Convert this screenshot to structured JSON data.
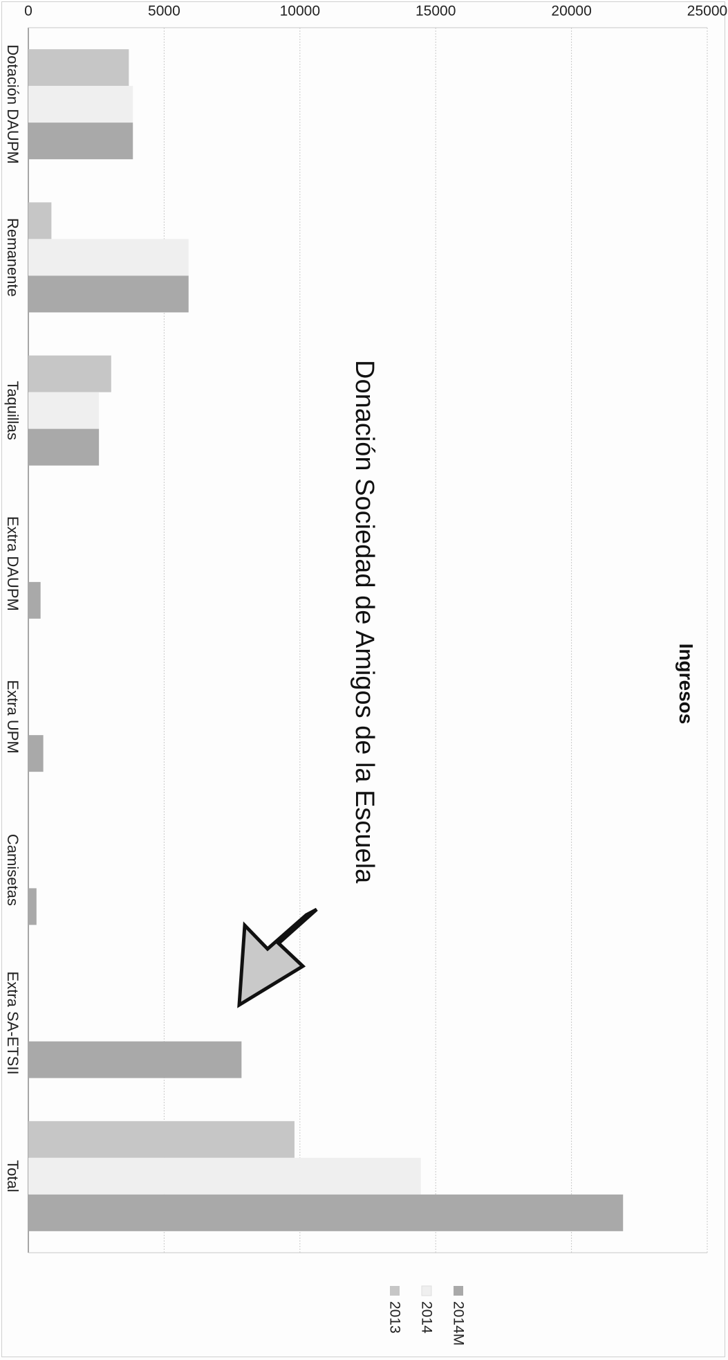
{
  "chart_data": {
    "type": "bar",
    "orientation": "vertical",
    "rotation": "90deg clockwise",
    "title": "Ingresos",
    "xlabel": "",
    "ylabel": "",
    "ylim": [
      0,
      25000
    ],
    "yticks": [
      0,
      5000,
      10000,
      15000,
      20000,
      25000
    ],
    "grid": true,
    "legend_position": "right",
    "categories": [
      "Dotación DAUPM",
      "Remanente",
      "Taquillas",
      "Extra DAUPM",
      "Extra UPM",
      "Camisetas",
      "Extra SA-ETSII",
      "Total"
    ],
    "series": [
      {
        "name": "2013",
        "color": "#c6c6c6",
        "values": [
          3700,
          850,
          3050,
          0,
          0,
          0,
          0,
          9800
        ]
      },
      {
        "name": "2014",
        "color": "#efefef",
        "values": [
          3850,
          5900,
          2600,
          0,
          0,
          0,
          0,
          14450
        ]
      },
      {
        "name": "2014M",
        "color": "#a9a9a9",
        "values": [
          3850,
          5900,
          2600,
          450,
          550,
          300,
          7850,
          21900
        ]
      }
    ],
    "annotation": {
      "text": "Donación Sociedad de Amigos de la Escuela",
      "points_to": "Extra SA-ETSII"
    }
  }
}
